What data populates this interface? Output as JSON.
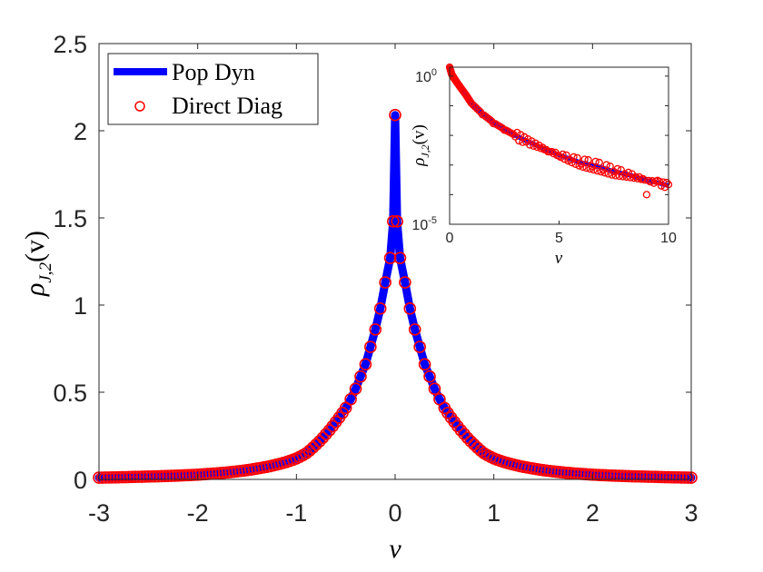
{
  "chart_data": [
    {
      "type": "line",
      "xlabel": "v",
      "ylabel": "ρ",
      "ylabel_sub": "J,2",
      "ylabel_arg": "(v)",
      "xlim": [
        -3,
        3
      ],
      "ylim": [
        0,
        2.5
      ],
      "xticks": [
        "-3",
        "-2",
        "-1",
        "0",
        "1",
        "2",
        "3"
      ],
      "yticks": [
        "0",
        "0.5",
        "1",
        "1.5",
        "2",
        "2.5"
      ],
      "grid": false,
      "legend_position": "top-left",
      "legend": [
        "Pop Dyn",
        "Direct Diag"
      ],
      "colors": {
        "pop_dyn": "#0000ff",
        "direct_diag": "#ff0000",
        "axes": "#262626"
      },
      "abs_v": [
        0,
        0.02,
        0.05,
        0.1,
        0.15,
        0.2,
        0.25,
        0.3,
        0.35,
        0.4,
        0.45,
        0.5,
        0.6,
        0.7,
        0.8,
        0.9,
        1.0,
        1.1,
        1.2,
        1.3,
        1.4,
        1.5,
        1.6,
        1.7,
        1.8,
        1.9,
        2.0,
        2.2,
        2.4,
        2.6,
        2.8,
        3.0
      ],
      "series": [
        {
          "name": "Pop Dyn",
          "style": "line",
          "values": [
            2.09,
            1.48,
            1.27,
            1.13,
            0.98,
            0.86,
            0.76,
            0.66,
            0.59,
            0.52,
            0.46,
            0.41,
            0.33,
            0.26,
            0.2,
            0.15,
            0.12,
            0.1,
            0.085,
            0.072,
            0.062,
            0.053,
            0.046,
            0.04,
            0.035,
            0.031,
            0.027,
            0.022,
            0.018,
            0.015,
            0.012,
            0.01
          ]
        },
        {
          "name": "Direct Diag",
          "style": "circles",
          "values": [
            2.09,
            1.48,
            1.27,
            1.13,
            0.98,
            0.86,
            0.76,
            0.66,
            0.59,
            0.52,
            0.46,
            0.41,
            0.33,
            0.26,
            0.2,
            0.15,
            0.12,
            0.1,
            0.085,
            0.072,
            0.062,
            0.053,
            0.046,
            0.04,
            0.035,
            0.031,
            0.027,
            0.022,
            0.018,
            0.015,
            0.012,
            0.01
          ]
        }
      ],
      "symmetric_in_v": true
    },
    {
      "type": "line",
      "inset": true,
      "xlabel": "v",
      "ylabel": "ρ",
      "ylabel_sub": "J,2",
      "ylabel_arg": "(v)",
      "xlim": [
        0,
        10
      ],
      "ylim": [
        1e-05,
        2
      ],
      "yscale": "log",
      "xticks": [
        "0",
        "5",
        "10"
      ],
      "yticks": [
        {
          "base": "10",
          "exp": "0"
        },
        {
          "base": "10",
          "exp": "-5"
        }
      ],
      "grid": false,
      "x": [
        0,
        0.1,
        0.2,
        0.3,
        0.5,
        0.75,
        1,
        1.5,
        2,
        2.5,
        3,
        3.5,
        4,
        4.5,
        5,
        5.5,
        6,
        6.5,
        7,
        7.5,
        8,
        8.5,
        9,
        9.5,
        10
      ],
      "series": [
        {
          "name": "Pop Dyn",
          "style": "line",
          "values": [
            2.0,
            1.13,
            0.86,
            0.66,
            0.41,
            0.23,
            0.12,
            0.053,
            0.027,
            0.016,
            0.01,
            0.0065,
            0.0045,
            0.003,
            0.0022,
            0.0016,
            0.0012,
            0.001,
            0.0008,
            0.0006,
            0.0005,
            0.0004,
            0.0003,
            0.00025,
            0.0002
          ]
        },
        {
          "name": "Direct Diag",
          "style": "circles",
          "values": [
            2.0,
            1.13,
            0.86,
            0.66,
            0.41,
            0.23,
            0.12,
            0.05,
            0.025,
            0.015,
            0.009,
            0.006,
            0.004,
            0.0028,
            0.002,
            0.0015,
            0.0011,
            0.0009,
            0.0007,
            0.0006,
            0.0005,
            0.0004,
            0.0001,
            0.0003,
            0.00022
          ]
        }
      ]
    }
  ]
}
